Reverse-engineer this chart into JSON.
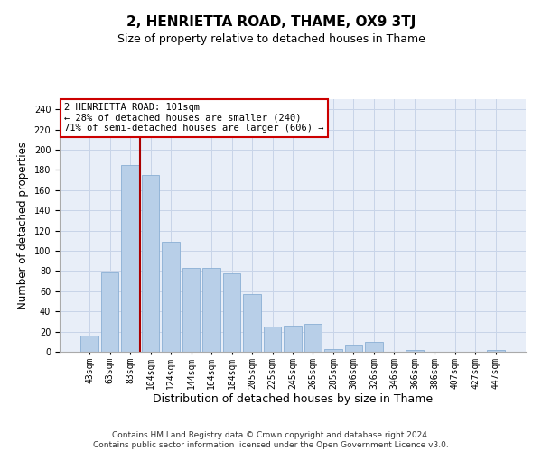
{
  "title": "2, HENRIETTA ROAD, THAME, OX9 3TJ",
  "subtitle": "Size of property relative to detached houses in Thame",
  "xlabel": "Distribution of detached houses by size in Thame",
  "ylabel": "Number of detached properties",
  "categories": [
    "43sqm",
    "63sqm",
    "83sqm",
    "104sqm",
    "124sqm",
    "144sqm",
    "164sqm",
    "184sqm",
    "205sqm",
    "225sqm",
    "245sqm",
    "265sqm",
    "285sqm",
    "306sqm",
    "326sqm",
    "346sqm",
    "366sqm",
    "386sqm",
    "407sqm",
    "427sqm",
    "447sqm"
  ],
  "values": [
    16,
    79,
    185,
    175,
    109,
    83,
    83,
    78,
    57,
    25,
    26,
    28,
    3,
    6,
    10,
    0,
    2,
    0,
    0,
    0,
    2
  ],
  "bar_color": "#b8cfe8",
  "bar_edge_color": "#8aafd4",
  "vline_color": "#aa0000",
  "vline_x_index": 2.5,
  "annotation_lines": [
    "2 HENRIETTA ROAD: 101sqm",
    "← 28% of detached houses are smaller (240)",
    "71% of semi-detached houses are larger (606) →"
  ],
  "annotation_box_facecolor": "#ffffff",
  "annotation_box_edgecolor": "#cc0000",
  "ylim": [
    0,
    250
  ],
  "yticks": [
    0,
    20,
    40,
    60,
    80,
    100,
    120,
    140,
    160,
    180,
    200,
    220,
    240
  ],
  "grid_color": "#c8d4e8",
  "bg_color": "#e8eef8",
  "footer_line1": "Contains HM Land Registry data © Crown copyright and database right 2024.",
  "footer_line2": "Contains public sector information licensed under the Open Government Licence v3.0.",
  "title_fontsize": 11,
  "subtitle_fontsize": 9,
  "xlabel_fontsize": 9,
  "ylabel_fontsize": 8.5,
  "tick_fontsize": 7,
  "annotation_fontsize": 7.5,
  "footer_fontsize": 6.5
}
